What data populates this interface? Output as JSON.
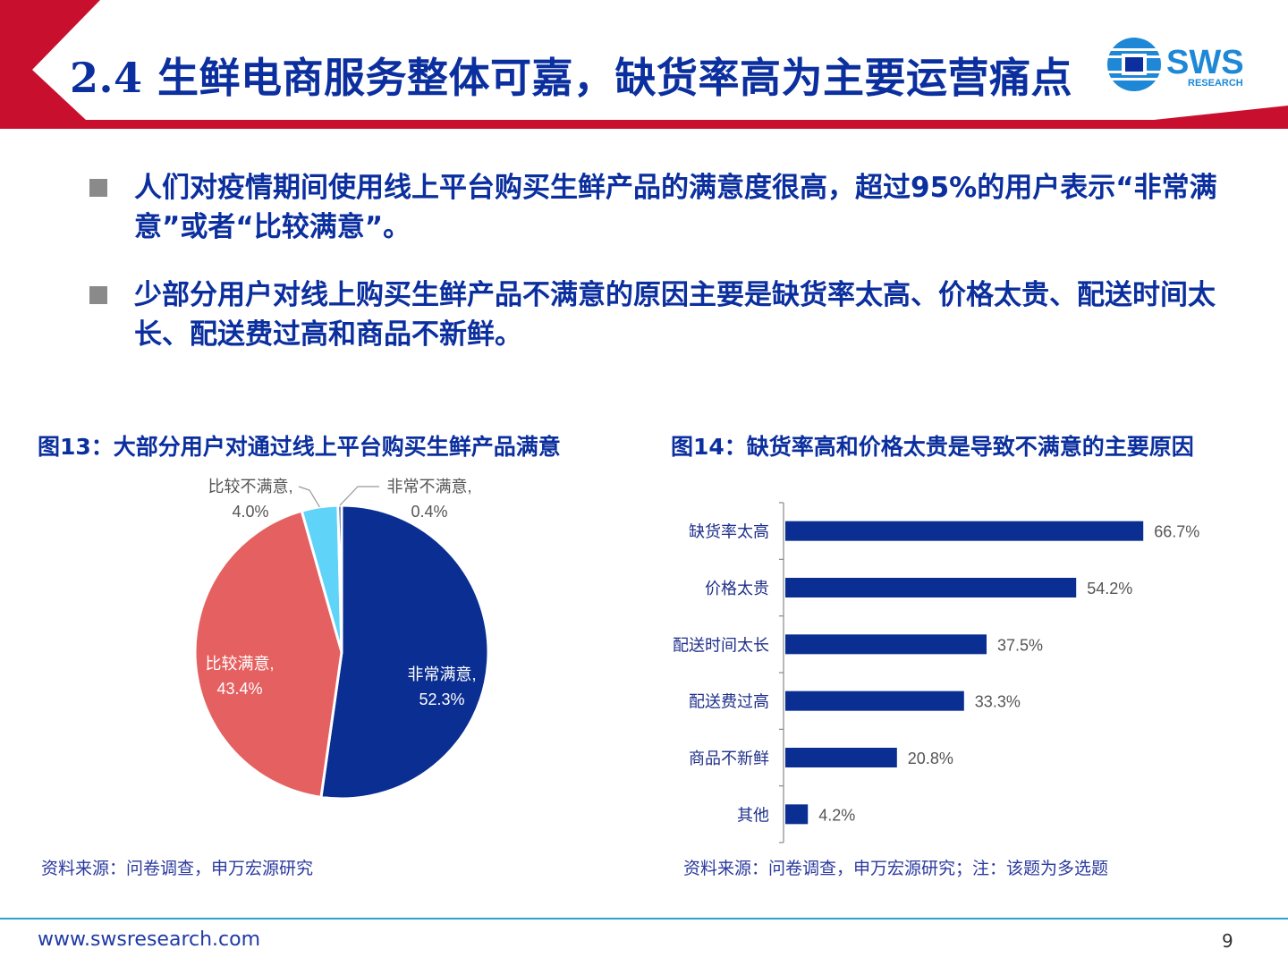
{
  "header": {
    "title": "2.4 生鲜电商服务整体可嘉，缺货率高为主要运营痛点",
    "logo_text": "SWS",
    "logo_subtext": "RESEARCH"
  },
  "bullets": [
    {
      "text": "人们对疫情期间使用线上平台购买生鲜产品的满意度很高，超过95%的用户表示“非常满意”或者“比较满意”。"
    },
    {
      "text": "少部分用户对线上购买生鲜产品不满意的原因主要是缺货率太高、价格太贵、配送时间太长、配送费过高和商品不新鲜。"
    }
  ],
  "figures": {
    "fig13_title": "图13：大部分用户对通过线上平台购买生鲜产品满意",
    "fig14_title": "图14：缺货率高和价格太贵是导致不满意的主要原因",
    "fig13_source": "资料来源：问卷调查，申万宏源研究",
    "fig14_source": "资料来源：问卷调查，申万宏源研究；注：该题为多选题"
  },
  "chart_data": [
    {
      "type": "pie",
      "slices": [
        {
          "label": "非常满意,",
          "value": 52.3,
          "value_label": "52.3%",
          "color": "#0a2e91"
        },
        {
          "label": "比较满意,",
          "value": 43.4,
          "value_label": "43.4%",
          "color": "#e56060"
        },
        {
          "label": "比较不满意,",
          "value": 4.0,
          "value_label": "4.0%",
          "color": "#5fd4f8"
        },
        {
          "label": "非常不满意,",
          "value": 0.4,
          "value_label": "0.4%",
          "color": "#0a2e91"
        }
      ]
    },
    {
      "type": "bar",
      "orientation": "horizontal",
      "categories": [
        "缺货率太高",
        "价格太贵",
        "配送时间太长",
        "配送费过高",
        "商品不新鲜",
        "其他"
      ],
      "values": [
        66.7,
        54.2,
        37.5,
        33.3,
        20.8,
        4.2
      ],
      "value_labels": [
        "66.7%",
        "54.2%",
        "37.5%",
        "33.3%",
        "20.8%",
        "4.2%"
      ],
      "color": "#0a2e91",
      "xlim": [
        0,
        100
      ]
    }
  ],
  "footer": {
    "url": "www.swsresearch.com",
    "page": "9"
  },
  "colors": {
    "brand_red": "#c8102e",
    "brand_blue": "#0b2f9e",
    "footer_line": "#2aa1d6"
  }
}
